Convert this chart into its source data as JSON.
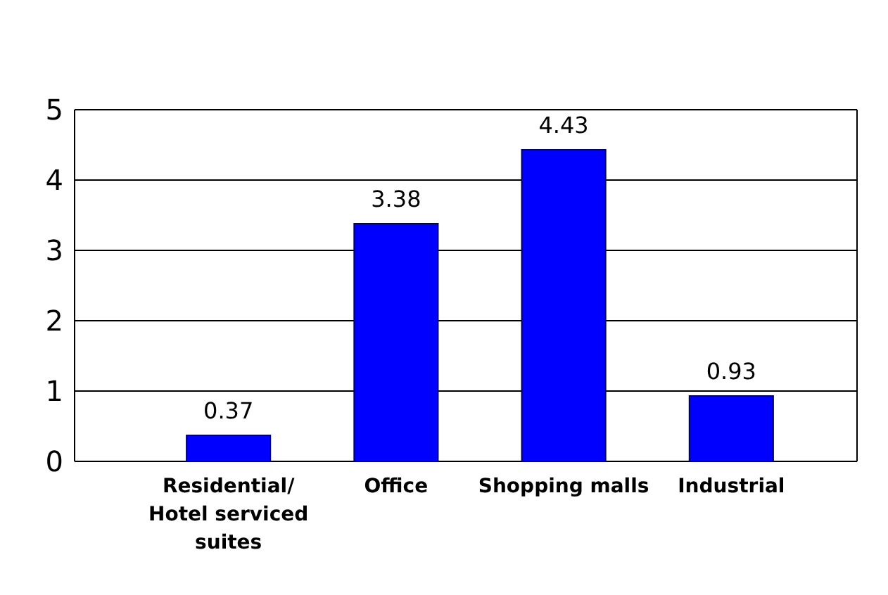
{
  "chart_data": {
    "type": "bar",
    "categories": [
      "Residential/ Hotel serviced suites",
      "Office",
      "Shopping malls",
      "Industrial"
    ],
    "values": [
      0.37,
      3.38,
      4.43,
      0.93
    ],
    "color": "#0000ff",
    "ylim": [
      0,
      5
    ],
    "yticks": [
      0,
      1,
      2,
      3,
      4,
      5
    ],
    "grid": "y",
    "data_labels": true
  }
}
